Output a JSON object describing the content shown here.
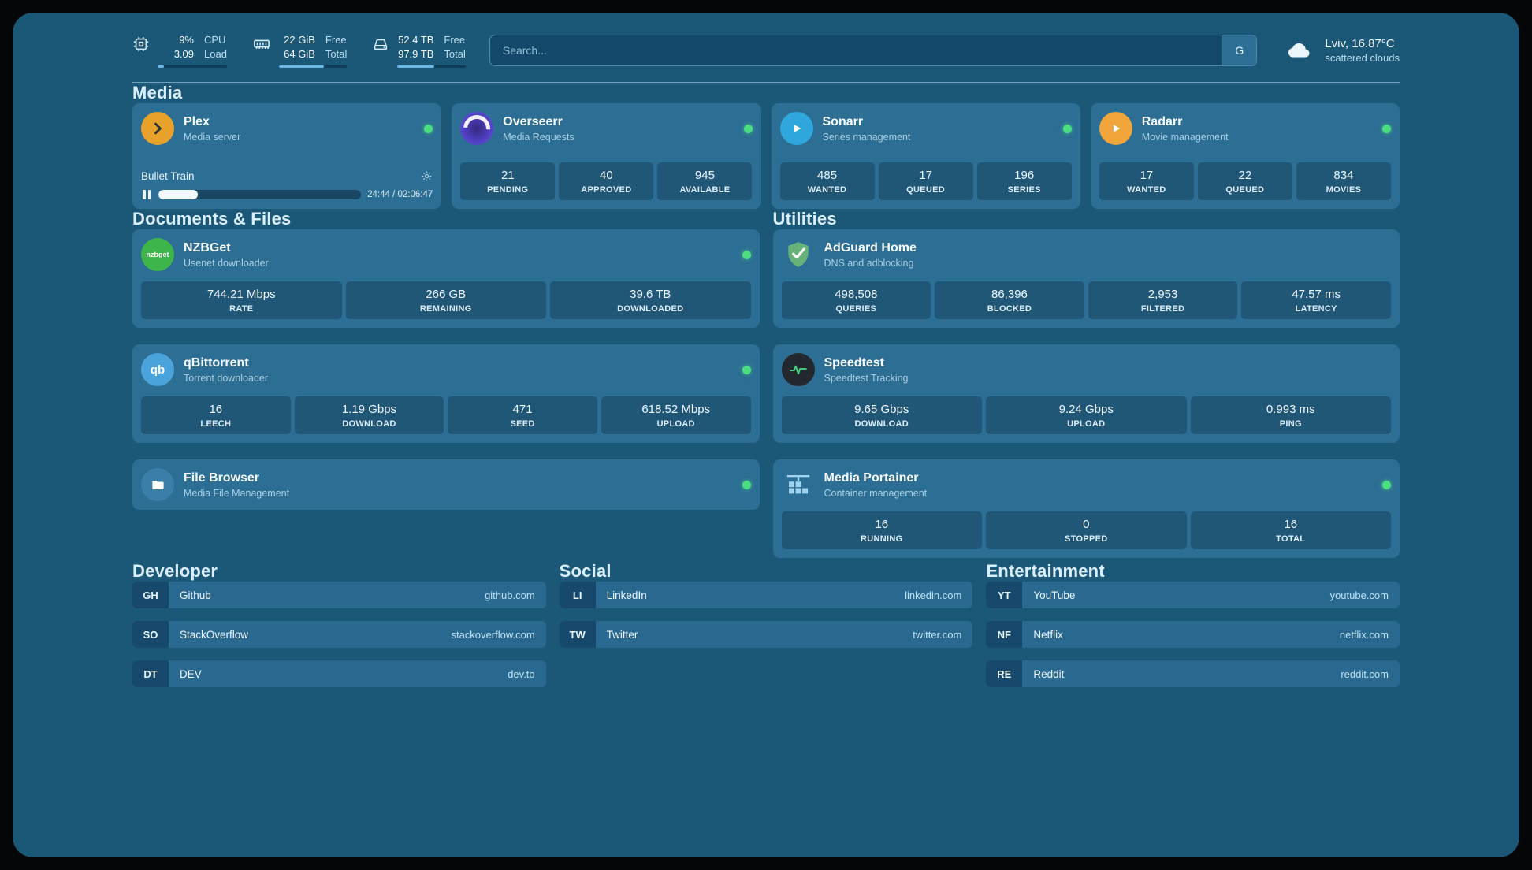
{
  "colors": {
    "status_ok": "#4ade80",
    "accent": "#6cb7e4",
    "plex": "#e8a22c",
    "overseerr": "#4f3fc0",
    "sonarr": "#2fa7dd",
    "radarr": "#f0a43a",
    "nzbget": "#3db54a",
    "qbittorrent": "#4aa3da",
    "filebrowser": "#3b7fa9",
    "adguard": "#67b279",
    "speedtest": "#23282e",
    "portainer": "#9fd4f0"
  },
  "topbar": {
    "cpu": {
      "value1": "9%",
      "value2": "3.09",
      "label1": "CPU",
      "label2": "Load",
      "progress": 9
    },
    "memory": {
      "value1": "22 GiB",
      "value2": "64 GiB",
      "label1": "Free",
      "label2": "Total",
      "progress": 66
    },
    "disk": {
      "value1": "52.4 TB",
      "value2": "97.9 TB",
      "label1": "Free",
      "label2": "Total",
      "progress": 54
    },
    "search": {
      "placeholder": "Search...",
      "button_label": "G"
    },
    "weather": {
      "location": "Lviv, 16.87°C",
      "condition": "scattered clouds"
    }
  },
  "media": {
    "heading": "Media",
    "plex": {
      "title": "Plex",
      "subtitle": "Media server",
      "now_playing": "Bullet Train",
      "time": "24:44 / 02:06:47",
      "progress_pct": 19.5
    },
    "overseerr": {
      "title": "Overseerr",
      "subtitle": "Media Requests",
      "stats": [
        {
          "value": "21",
          "label": "PENDING"
        },
        {
          "value": "40",
          "label": "APPROVED"
        },
        {
          "value": "945",
          "label": "AVAILABLE"
        }
      ]
    },
    "sonarr": {
      "title": "Sonarr",
      "subtitle": "Series management",
      "stats": [
        {
          "value": "485",
          "label": "WANTED"
        },
        {
          "value": "17",
          "label": "QUEUED"
        },
        {
          "value": "196",
          "label": "SERIES"
        }
      ]
    },
    "radarr": {
      "title": "Radarr",
      "subtitle": "Movie management",
      "stats": [
        {
          "value": "17",
          "label": "WANTED"
        },
        {
          "value": "22",
          "label": "QUEUED"
        },
        {
          "value": "834",
          "label": "MOVIES"
        }
      ]
    }
  },
  "documents": {
    "heading": "Documents & Files",
    "nzbget": {
      "title": "NZBGet",
      "subtitle": "Usenet downloader",
      "icon_label": "nzbget",
      "stats": [
        {
          "value": "744.21 Mbps",
          "label": "RATE"
        },
        {
          "value": "266 GB",
          "label": "REMAINING"
        },
        {
          "value": "39.6 TB",
          "label": "DOWNLOADED"
        }
      ]
    },
    "qbittorrent": {
      "title": "qBittorrent",
      "subtitle": "Torrent downloader",
      "icon_label": "qb",
      "stats": [
        {
          "value": "16",
          "label": "LEECH"
        },
        {
          "value": "1.19 Gbps",
          "label": "DOWNLOAD"
        },
        {
          "value": "471",
          "label": "SEED"
        },
        {
          "value": "618.52 Mbps",
          "label": "UPLOAD"
        }
      ]
    },
    "filebrowser": {
      "title": "File Browser",
      "subtitle": "Media File Management"
    }
  },
  "utilities": {
    "heading": "Utilities",
    "adguard": {
      "title": "AdGuard Home",
      "subtitle": "DNS and adblocking",
      "stats": [
        {
          "value": "498,508",
          "label": "QUERIES"
        },
        {
          "value": "86,396",
          "label": "BLOCKED"
        },
        {
          "value": "2,953",
          "label": "FILTERED"
        },
        {
          "value": "47.57 ms",
          "label": "LATENCY"
        }
      ]
    },
    "speedtest": {
      "title": "Speedtest",
      "subtitle": "Speedtest Tracking",
      "stats": [
        {
          "value": "9.65 Gbps",
          "label": "DOWNLOAD"
        },
        {
          "value": "9.24 Gbps",
          "label": "UPLOAD"
        },
        {
          "value": "0.993 ms",
          "label": "PING"
        }
      ]
    },
    "portainer": {
      "title": "Media Portainer",
      "subtitle": "Container management",
      "stats": [
        {
          "value": "16",
          "label": "RUNNING"
        },
        {
          "value": "0",
          "label": "STOPPED"
        },
        {
          "value": "16",
          "label": "TOTAL"
        }
      ]
    }
  },
  "bookmarks": {
    "developer": {
      "heading": "Developer",
      "items": [
        {
          "abbr": "GH",
          "name": "Github",
          "domain": "github.com"
        },
        {
          "abbr": "SO",
          "name": "StackOverflow",
          "domain": "stackoverflow.com"
        },
        {
          "abbr": "DT",
          "name": "DEV",
          "domain": "dev.to"
        }
      ]
    },
    "social": {
      "heading": "Social",
      "items": [
        {
          "abbr": "LI",
          "name": "LinkedIn",
          "domain": "linkedin.com"
        },
        {
          "abbr": "TW",
          "name": "Twitter",
          "domain": "twitter.com"
        }
      ]
    },
    "entertainment": {
      "heading": "Entertainment",
      "items": [
        {
          "abbr": "YT",
          "name": "YouTube",
          "domain": "youtube.com"
        },
        {
          "abbr": "NF",
          "name": "Netflix",
          "domain": "netflix.com"
        },
        {
          "abbr": "RE",
          "name": "Reddit",
          "domain": "reddit.com"
        }
      ]
    }
  }
}
